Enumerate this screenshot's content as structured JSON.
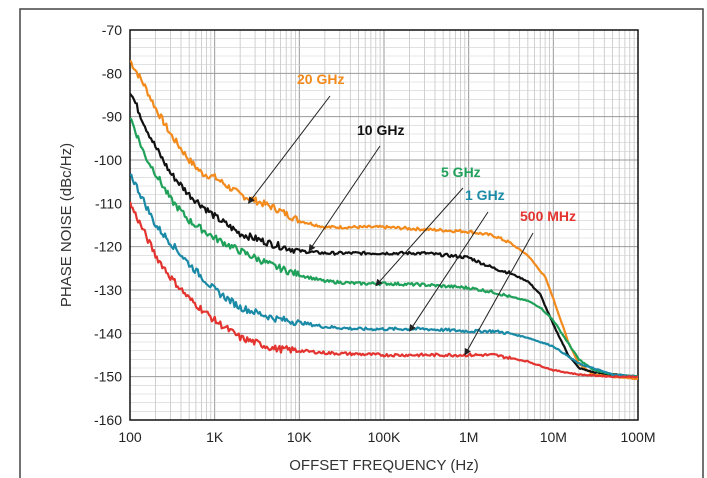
{
  "chart_data": {
    "type": "line",
    "title": "",
    "xlabel": "OFFSET FREQUENCY (Hz)",
    "ylabel": "PHASE NOISE (dBc/Hz)",
    "x_scale": "log",
    "xlim": [
      100,
      100000000
    ],
    "ylim": [
      -160,
      -70
    ],
    "grid": true,
    "x_ticks": [
      {
        "value": 100,
        "label": "100"
      },
      {
        "value": 1000,
        "label": "1K"
      },
      {
        "value": 10000,
        "label": "10K"
      },
      {
        "value": 100000,
        "label": "100K"
      },
      {
        "value": 1000000,
        "label": "1M"
      },
      {
        "value": 10000000,
        "label": "10M"
      },
      {
        "value": 100000000,
        "label": "100M"
      }
    ],
    "y_ticks": [
      {
        "value": -70,
        "label": "-70"
      },
      {
        "value": -80,
        "label": "-80"
      },
      {
        "value": -90,
        "label": "-90"
      },
      {
        "value": -100,
        "label": "-100"
      },
      {
        "value": -110,
        "label": "-110"
      },
      {
        "value": -120,
        "label": "-120"
      },
      {
        "value": -130,
        "label": "-130"
      },
      {
        "value": -140,
        "label": "-140"
      },
      {
        "value": -150,
        "label": "-150"
      },
      {
        "value": -160,
        "label": "-160"
      }
    ],
    "series": [
      {
        "name": "20 GHz",
        "color": "#f28a1c",
        "x": [
          100,
          150,
          200,
          300,
          500,
          700,
          1000,
          2000,
          5000,
          10000,
          20000,
          50000,
          100000,
          300000,
          1000000,
          2000000,
          3000000,
          5000000,
          8000000,
          10000000,
          15000000,
          20000000,
          30000000,
          50000000,
          100000000
        ],
        "y": [
          -77,
          -83,
          -88,
          -94,
          -100,
          -103,
          -104,
          -108,
          -111,
          -114,
          -115.5,
          -115.5,
          -115.5,
          -116,
          -116.5,
          -117.5,
          -119,
          -122,
          -127,
          -132,
          -142,
          -147,
          -149.5,
          -150,
          -150.5
        ]
      },
      {
        "name": "10 GHz",
        "color": "#111111",
        "x": [
          100,
          150,
          200,
          300,
          500,
          1000,
          2000,
          5000,
          10000,
          20000,
          50000,
          100000,
          300000,
          1000000,
          1500000,
          2000000,
          3000000,
          5000000,
          7000000,
          10000000,
          15000000,
          20000000,
          30000000,
          50000000,
          100000000
        ],
        "y": [
          -84,
          -92,
          -97,
          -103,
          -108,
          -113,
          -117,
          -119.5,
          -121,
          -121.5,
          -121.5,
          -121.5,
          -121.5,
          -122.5,
          -124,
          -125,
          -126,
          -128,
          -131,
          -138,
          -145,
          -148,
          -149,
          -149.5,
          -150
        ]
      },
      {
        "name": "5 GHz",
        "color": "#1fa15a",
        "x": [
          100,
          150,
          200,
          300,
          500,
          1000,
          2000,
          5000,
          10000,
          20000,
          50000,
          100000,
          300000,
          1000000,
          2000000,
          3000000,
          5000000,
          7000000,
          10000000,
          20000000,
          30000000,
          50000000,
          100000000
        ],
        "y": [
          -90,
          -99,
          -103,
          -109,
          -114,
          -118,
          -121,
          -124.5,
          -126.5,
          -128,
          -128.5,
          -128.5,
          -128.8,
          -129.5,
          -130.5,
          -131.5,
          -132.5,
          -134,
          -137,
          -146,
          -148.5,
          -149.5,
          -150
        ]
      },
      {
        "name": "1 GHz",
        "color": "#1a8aa6",
        "x": [
          100,
          150,
          200,
          300,
          500,
          1000,
          2000,
          5000,
          10000,
          20000,
          50000,
          100000,
          300000,
          1000000,
          2000000,
          3000000,
          5000000,
          10000000,
          20000000,
          50000000,
          100000000
        ],
        "y": [
          -103,
          -110,
          -115,
          -119,
          -124,
          -130,
          -134,
          -136.5,
          -137.5,
          -138.5,
          -139,
          -139,
          -139,
          -139.5,
          -139.5,
          -140,
          -141,
          -143,
          -147,
          -149.5,
          -150
        ]
      },
      {
        "name": "500 MHz",
        "color": "#e3342f",
        "x": [
          100,
          150,
          200,
          300,
          500,
          1000,
          2000,
          5000,
          10000,
          20000,
          50000,
          100000,
          300000,
          1000000,
          2000000,
          5000000,
          10000000,
          20000000,
          50000000,
          100000000
        ],
        "y": [
          -110,
          -117,
          -122,
          -127,
          -132,
          -137,
          -141,
          -143.5,
          -144,
          -144.5,
          -144.8,
          -145,
          -145,
          -145,
          -145,
          -146.5,
          -148.5,
          -149.5,
          -150,
          -150
        ]
      }
    ],
    "annotations": [
      {
        "series": 0,
        "text": "20 GHz",
        "arrow_to": [
          2500,
          -110
        ]
      },
      {
        "series": 1,
        "text": "10 GHz",
        "arrow_to": [
          13000,
          -121
        ]
      },
      {
        "series": 2,
        "text": "5 GHz",
        "arrow_to": [
          80000,
          -129
        ]
      },
      {
        "series": 3,
        "text": "1 GHz",
        "arrow_to": [
          200000,
          -139.5
        ]
      },
      {
        "series": 4,
        "text": "500 MHz",
        "arrow_to": [
          900000,
          -145
        ]
      }
    ]
  }
}
